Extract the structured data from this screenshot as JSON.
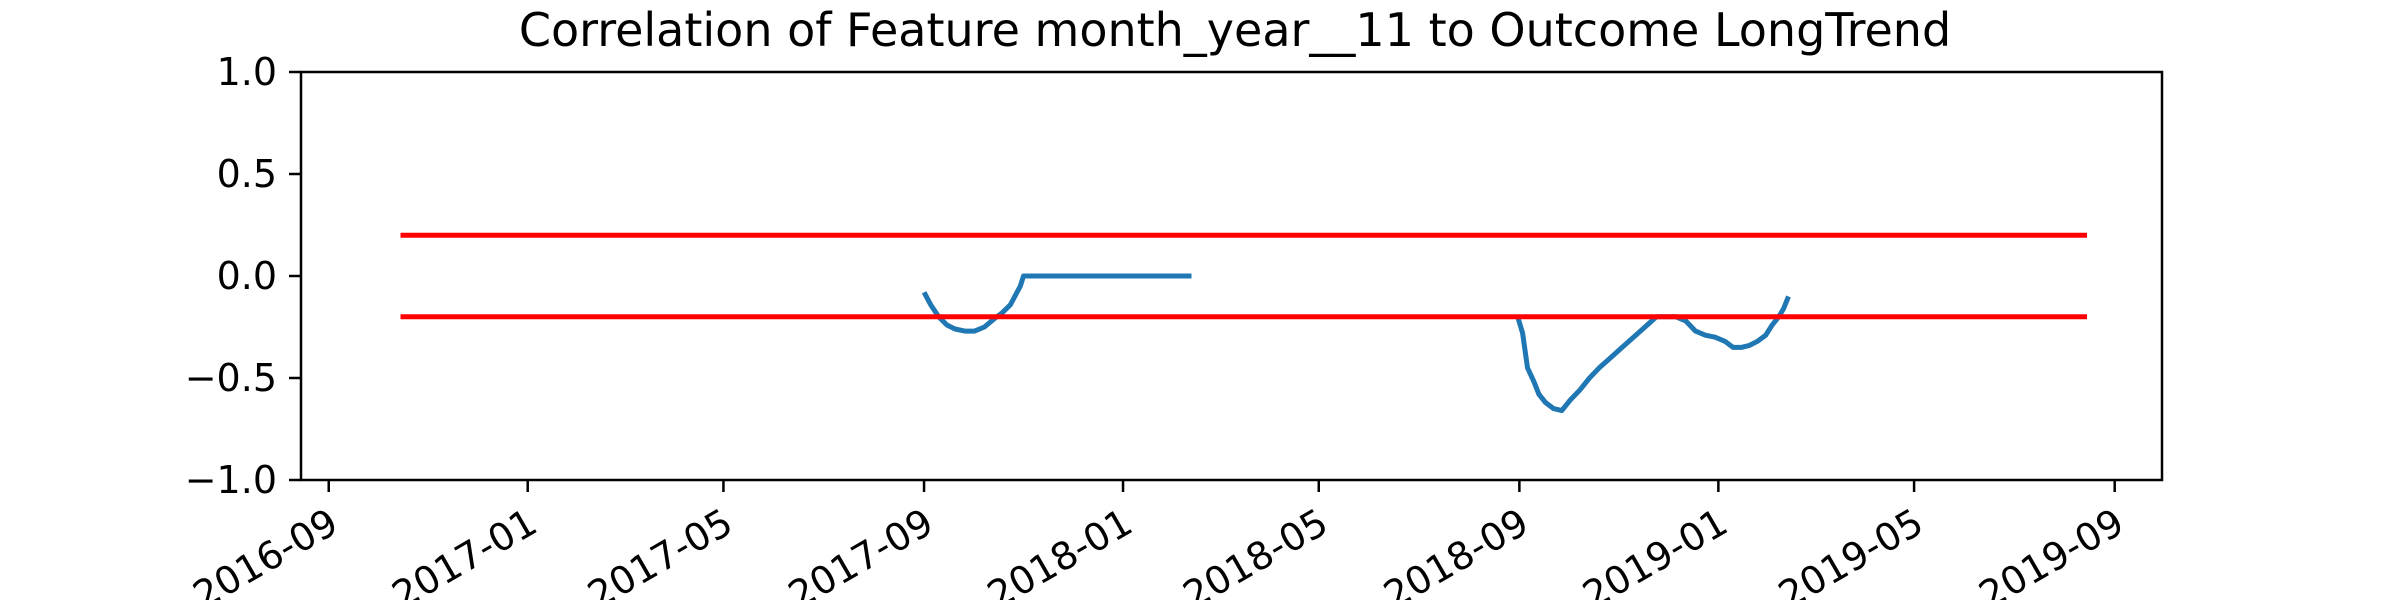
{
  "chart_data": {
    "type": "line",
    "title": "Correlation of Feature month_year__11 to Outcome LongTrend",
    "xlabel": "",
    "ylabel": "",
    "ylim": [
      -1.0,
      1.0
    ],
    "xlim": [
      "2016-08-15",
      "2019-09-30"
    ],
    "yticks": [
      1.0,
      0.5,
      0.0,
      -0.5,
      -1.0
    ],
    "ytick_labels": [
      "1.0",
      "0.5",
      "0.0",
      "−0.5",
      "−1.0"
    ],
    "xticks": [
      "2016-09-01",
      "2017-01-01",
      "2017-05-01",
      "2017-09-01",
      "2018-01-01",
      "2018-05-01",
      "2018-09-01",
      "2019-01-01",
      "2019-05-01",
      "2019-09-01"
    ],
    "xtick_labels": [
      "2016-09",
      "2017-01",
      "2017-05",
      "2017-09",
      "2018-01",
      "2018-05",
      "2018-09",
      "2019-01",
      "2019-05",
      "2019-09"
    ],
    "grid": false,
    "series": [
      {
        "color": "#1f77b4",
        "x": [
          "2017-09-01",
          "2017-09-05",
          "2017-09-10",
          "2017-09-15",
          "2017-09-20",
          "2017-09-26",
          "2017-10-02",
          "2017-10-08",
          "2017-10-14",
          "2017-10-19",
          "2017-10-24",
          "2017-10-28",
          "2017-10-30",
          "2017-11-01",
          "2017-11-20",
          "2017-12-10",
          "2018-01-01",
          "2018-01-20",
          "2018-02-12"
        ],
        "y": [
          -0.08,
          -0.14,
          -0.2,
          -0.24,
          -0.26,
          -0.27,
          -0.27,
          -0.25,
          -0.21,
          -0.18,
          -0.14,
          -0.08,
          -0.05,
          0.0,
          0.0,
          0.0,
          0.0,
          0.0,
          0.0
        ]
      },
      {
        "color": "#1f77b4",
        "x": [
          "2018-08-31",
          "2018-09-03",
          "2018-09-06",
          "2018-09-10",
          "2018-09-13",
          "2018-09-17",
          "2018-09-22",
          "2018-09-27",
          "2018-10-02",
          "2018-10-08",
          "2018-10-14",
          "2018-10-20",
          "2018-10-27",
          "2018-11-03",
          "2018-11-10",
          "2018-11-17",
          "2018-11-24",
          "2018-12-01",
          "2018-12-06",
          "2018-12-12",
          "2018-12-18",
          "2018-12-24",
          "2018-12-30",
          "2019-01-05",
          "2019-01-10",
          "2019-01-15",
          "2019-01-20",
          "2019-01-25",
          "2019-01-30",
          "2019-02-03",
          "2019-02-07",
          "2019-02-10",
          "2019-02-13"
        ],
        "y": [
          -0.2,
          -0.28,
          -0.45,
          -0.52,
          -0.58,
          -0.62,
          -0.65,
          -0.66,
          -0.61,
          -0.56,
          -0.5,
          -0.45,
          -0.4,
          -0.35,
          -0.3,
          -0.25,
          -0.2,
          -0.2,
          -0.2,
          -0.22,
          -0.27,
          -0.29,
          -0.3,
          -0.32,
          -0.35,
          -0.35,
          -0.34,
          -0.32,
          -0.29,
          -0.24,
          -0.2,
          -0.16,
          -0.1
        ]
      },
      {
        "color": "#ff0000",
        "x": [
          "2016-10-15",
          "2019-08-15"
        ],
        "y": [
          0.2,
          0.2
        ]
      },
      {
        "color": "#ff0000",
        "x": [
          "2016-10-15",
          "2019-08-15"
        ],
        "y": [
          -0.2,
          -0.2
        ]
      }
    ]
  }
}
